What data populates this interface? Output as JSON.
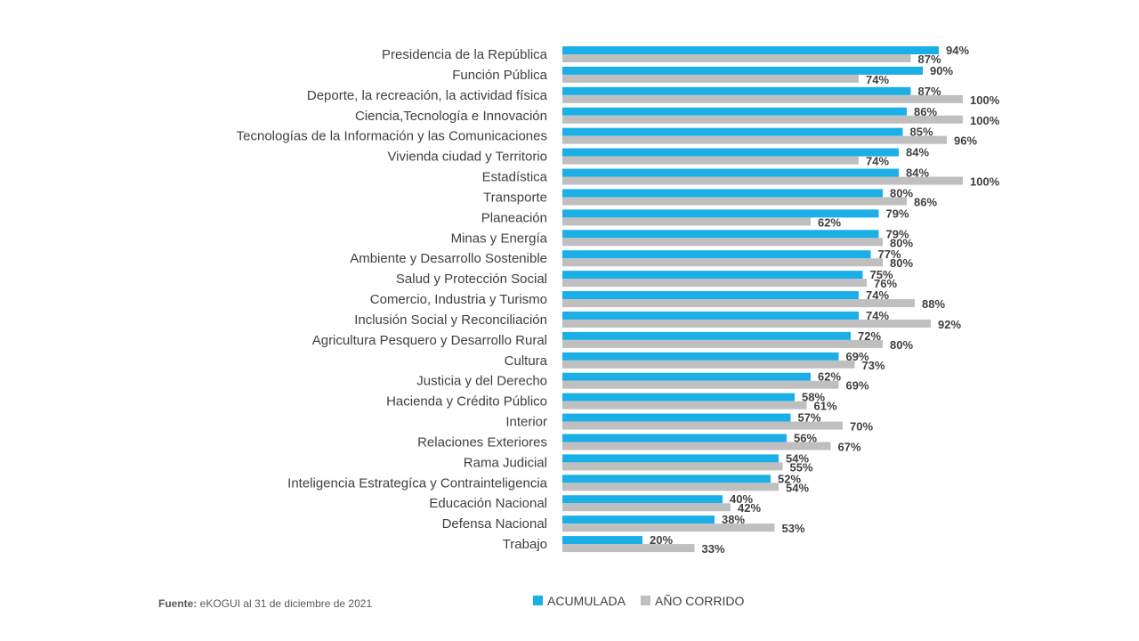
{
  "chart_data": {
    "type": "bar",
    "orientation": "horizontal",
    "categories": [
      "Presidencia de la República",
      "Función Pública",
      "Deporte, la recreación, la actividad física",
      "Ciencia,Tecnología e Innovación",
      "Tecnologías de la Información y las Comunicaciones",
      "Vivienda ciudad y Territorio",
      "Estadística",
      "Transporte",
      "Planeación",
      "Minas y Energía",
      "Ambiente y Desarrollo Sostenible",
      "Salud y Protección Social",
      "Comercio, Industria y Turismo",
      "Inclusión Social y Reconciliación",
      "Agricultura Pesquero y Desarrollo Rural",
      "Cultura",
      "Justicia y del Derecho ",
      "Hacienda y Crédito Público",
      "Interior",
      "Relaciones Exteriores",
      "Rama Judicial",
      "Inteligencia Estrategíca y Contrainteligencia",
      "Educación Nacional",
      "Defensa Nacional ",
      "Trabajo"
    ],
    "series": [
      {
        "name": "ACUMULADA",
        "color": "#1aafe6",
        "values": [
          94,
          90,
          87,
          86,
          85,
          84,
          84,
          80,
          79,
          79,
          77,
          75,
          74,
          74,
          72,
          69,
          62,
          58,
          57,
          56,
          54,
          52,
          40,
          38,
          20
        ]
      },
      {
        "name": "AÑO CORRIDO",
        "color": "#bfbfbf",
        "values": [
          87,
          74,
          100,
          100,
          96,
          74,
          100,
          86,
          62,
          80,
          80,
          76,
          88,
          92,
          80,
          73,
          69,
          61,
          70,
          67,
          55,
          54,
          42,
          53,
          33
        ]
      }
    ],
    "value_suffix": "%",
    "xlim": [
      0,
      100
    ],
    "grid": false,
    "legend_position": "bottom",
    "source_label": "Fuente:",
    "source_text": " eKOGUI al 31 de diciembre de 2021"
  }
}
